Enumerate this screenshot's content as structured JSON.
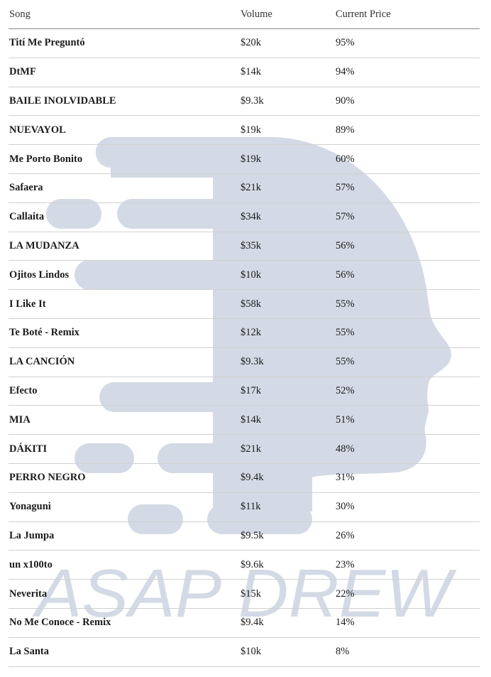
{
  "table": {
    "header": [
      "Song",
      "Volume",
      "Current Price"
    ],
    "rows": [
      [
        "Tití Me Preguntó",
        "$20k",
        "95%"
      ],
      [
        "DtMF",
        "$14k",
        "94%"
      ],
      [
        "BAILE INOLVIDABLE",
        "$9.3k",
        "90%"
      ],
      [
        "NUEVAYOL",
        "$19k",
        "89%"
      ],
      [
        "Me Porto Bonito",
        "$19k",
        "60%"
      ],
      [
        "Safaera",
        "$21k",
        "57%"
      ],
      [
        "Callaita",
        "$34k",
        "57%"
      ],
      [
        "LA MUDANZA",
        "$35k",
        "56%"
      ],
      [
        "Ojitos Lindos",
        "$10k",
        "56%"
      ],
      [
        "I Like It",
        "$58k",
        "55%"
      ],
      [
        "Te Boté - Remix",
        "$12k",
        "55%"
      ],
      [
        "LA CANCIÓN",
        "$9.3k",
        "55%"
      ],
      [
        "Efecto",
        "$17k",
        "52%"
      ],
      [
        "MIA",
        "$14k",
        "51%"
      ],
      [
        "DÁKITI",
        "$21k",
        "48%"
      ],
      [
        "PERRO NEGRO",
        "$9.4k",
        "31%"
      ],
      [
        "Yonaguni",
        "$11k",
        "30%"
      ],
      [
        "La Jumpa",
        "$9.5k",
        "26%"
      ],
      [
        "un x100to",
        "$9.6k",
        "23%"
      ],
      [
        "Neverita",
        "$15k",
        "22%"
      ],
      [
        "No Me Conoce - Remix",
        "$9.4k",
        "14%"
      ],
      [
        "La Santa",
        "$10k",
        "8%"
      ]
    ]
  },
  "watermark": "ASAP DREW"
}
